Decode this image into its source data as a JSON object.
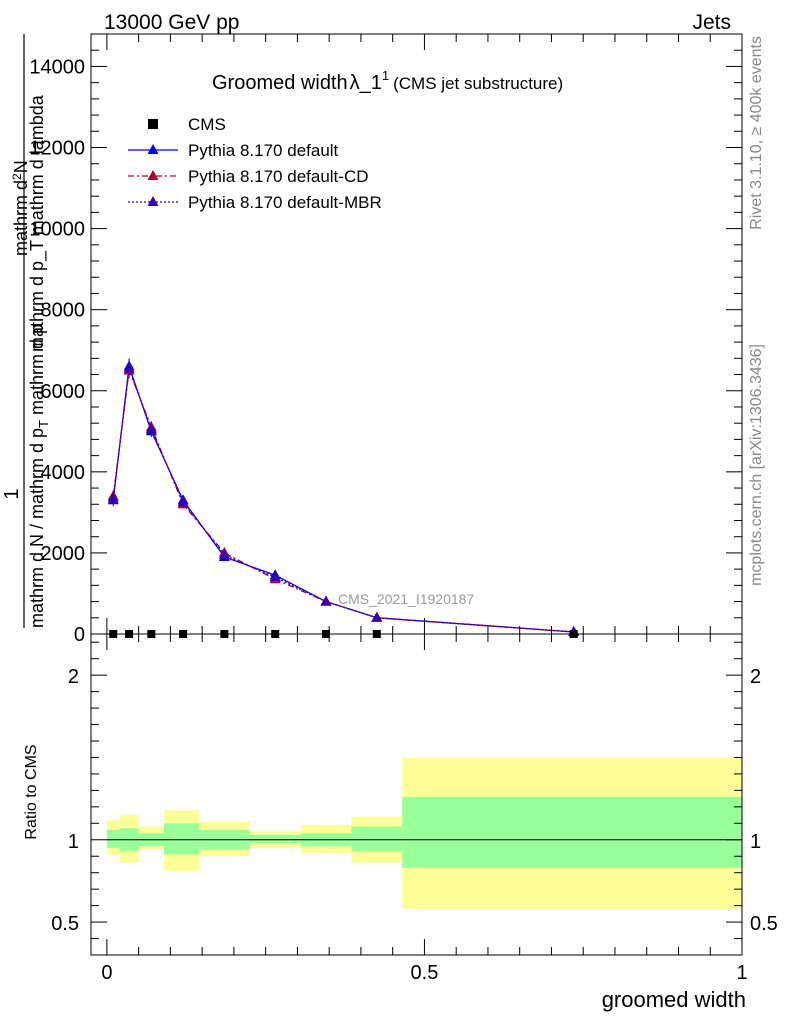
{
  "header": {
    "left": "13000 GeV pp",
    "right": "Jets"
  },
  "side_labels": {
    "rivet": "Rivet 3.1.10, ≥ 400k events",
    "mcplots": "mcplots.cern.ch [arXiv:1306.3436]"
  },
  "chart_data": [
    {
      "type": "line",
      "title_main": "Groomed width",
      "title_lambda": "λ_1",
      "title_sup": "1",
      "title_sub": "(CMS jet substructure)",
      "ylabel_num": "1",
      "ylabel_den_line1": "mathrm d N / mathrm d p",
      "ylabel_den_sub": "T",
      "ylabel_den_line2": " mathrm d p",
      "ylabel_num_line": "mathrm d",
      "ylabel_num_sup": "2",
      "ylabel_num_rest": "N",
      "ylabel_lambda": "mathrm d p_T mathrm d lambda",
      "watermark": "CMS_2021_I1920187",
      "ylim": [
        0,
        14800
      ],
      "yticks": [
        0,
        2000,
        4000,
        6000,
        8000,
        10000,
        12000,
        14000
      ],
      "ytick_labels": [
        "0",
        "2000",
        "4000",
        "6000",
        "8000",
        "10000",
        "12000",
        "14000"
      ],
      "xlim": [
        -0.025,
        1.0
      ],
      "legend": [
        {
          "label": "CMS",
          "color": "#000000",
          "marker": "square",
          "dash": ""
        },
        {
          "label": "Pythia 8.170 default",
          "color": "#0000ff",
          "marker": "triangle",
          "dash": ""
        },
        {
          "label": "Pythia 8.170 default-CD",
          "color": "#b00030",
          "marker": "triangle",
          "dash": "6,3,2,3"
        },
        {
          "label": "Pythia 8.170 default-MBR",
          "color": "#3a00b0",
          "marker": "triangle",
          "dash": "2,2"
        }
      ],
      "cms_points": {
        "x": [
          0.01,
          0.035,
          0.07,
          0.12,
          0.185,
          0.265,
          0.345,
          0.425,
          0.735
        ],
        "y": [
          0,
          0,
          0,
          0,
          0,
          0,
          0,
          0,
          0
        ]
      },
      "series": [
        {
          "name": "Pythia 8.170 default",
          "color": "#0000ff",
          "dash": "",
          "x": [
            0.01,
            0.035,
            0.07,
            0.12,
            0.185,
            0.265,
            0.345,
            0.425,
            0.735
          ],
          "y": [
            3300,
            6600,
            5000,
            3300,
            1900,
            1450,
            800,
            400,
            50
          ],
          "err": [
            150,
            200,
            150,
            100,
            60,
            50,
            30,
            20,
            5
          ]
        },
        {
          "name": "Pythia 8.170 default-CD",
          "color": "#b00030",
          "dash": "6,3,2,3",
          "x": [
            0.01,
            0.035,
            0.07,
            0.12,
            0.185,
            0.265,
            0.345,
            0.425,
            0.735
          ],
          "y": [
            3400,
            6500,
            5100,
            3200,
            2000,
            1350,
            800,
            400,
            50
          ],
          "err": [
            150,
            200,
            150,
            100,
            60,
            50,
            30,
            20,
            5
          ]
        },
        {
          "name": "Pythia 8.170 default-MBR",
          "color": "#3a00b0",
          "dash": "2,2",
          "x": [
            0.01,
            0.035,
            0.07,
            0.12,
            0.185,
            0.265,
            0.345,
            0.425,
            0.735
          ],
          "y": [
            3350,
            6550,
            5050,
            3250,
            1950,
            1400,
            800,
            400,
            50
          ],
          "err": [
            150,
            200,
            150,
            100,
            60,
            50,
            30,
            20,
            5
          ]
        }
      ]
    },
    {
      "type": "area",
      "ylabel": "Ratio to CMS",
      "xlabel": "groomed width",
      "ylim": [
        0.3,
        2.25
      ],
      "yticks": [
        0.5,
        1,
        2
      ],
      "ytick_labels": [
        "0.5",
        "1",
        "2"
      ],
      "xlim": [
        -0.025,
        1.0
      ],
      "xticks": [
        0,
        0.5,
        1
      ],
      "xtick_labels": [
        "0",
        "0.5",
        "1"
      ],
      "colors": {
        "inner": "#99ff99",
        "outer": "#ffff99"
      },
      "bins": [
        {
          "x0": 0.0,
          "x1": 0.02,
          "inner": [
            0.95,
            1.06
          ],
          "outer": [
            0.91,
            1.12
          ]
        },
        {
          "x0": 0.02,
          "x1": 0.05,
          "inner": [
            0.93,
            1.07
          ],
          "outer": [
            0.86,
            1.15
          ]
        },
        {
          "x0": 0.05,
          "x1": 0.09,
          "inner": [
            0.96,
            1.04
          ],
          "outer": [
            0.94,
            1.08
          ]
        },
        {
          "x0": 0.09,
          "x1": 0.145,
          "inner": [
            0.91,
            1.1
          ],
          "outer": [
            0.81,
            1.18
          ]
        },
        {
          "x0": 0.145,
          "x1": 0.225,
          "inner": [
            0.94,
            1.06
          ],
          "outer": [
            0.9,
            1.11
          ]
        },
        {
          "x0": 0.225,
          "x1": 0.305,
          "inner": [
            0.98,
            1.03
          ],
          "outer": [
            0.95,
            1.05
          ]
        },
        {
          "x0": 0.305,
          "x1": 0.385,
          "inner": [
            0.96,
            1.04
          ],
          "outer": [
            0.92,
            1.09
          ]
        },
        {
          "x0": 0.385,
          "x1": 0.465,
          "inner": [
            0.93,
            1.08
          ],
          "outer": [
            0.86,
            1.14
          ]
        },
        {
          "x0": 0.465,
          "x1": 1.0,
          "inner": [
            0.83,
            1.26
          ],
          "outer": [
            0.58,
            1.5
          ]
        }
      ]
    }
  ]
}
